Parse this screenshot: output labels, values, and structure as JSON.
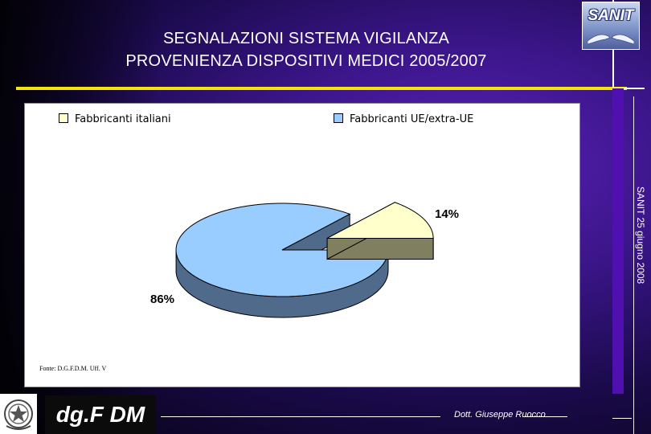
{
  "header": {
    "title_line1": "SEGNALAZIONI SISTEMA VIGILANZA",
    "title_line2": "PROVENIENZA DISPOSITIVI MEDICI 2005/2007",
    "logo_text": "SANIT"
  },
  "colors": {
    "title_rule": "#f4e40a",
    "series_italiani": "#ffffcc",
    "series_italiani_side": "#808060",
    "series_ue": "#99ccff",
    "series_ue_side": "#4f6a8a"
  },
  "chart_data": {
    "type": "pie",
    "style": "3d-exploded",
    "categories": [
      "Fabbricanti italiani",
      "Fabbricanti UE/extra-UE"
    ],
    "values": [
      14,
      86
    ],
    "labels": [
      "14%",
      "86%"
    ],
    "legend_position": "top",
    "title": ""
  },
  "source_note": "Fonte: D.G.F.D.M. Uff. V",
  "side_caption": "SANIT 25 giugno 2008",
  "footer": {
    "logo_text": "dg.F DM",
    "author": "Dott. Giuseppe Ruocco",
    "emblem_icon": "italian-republic-emblem-icon"
  }
}
